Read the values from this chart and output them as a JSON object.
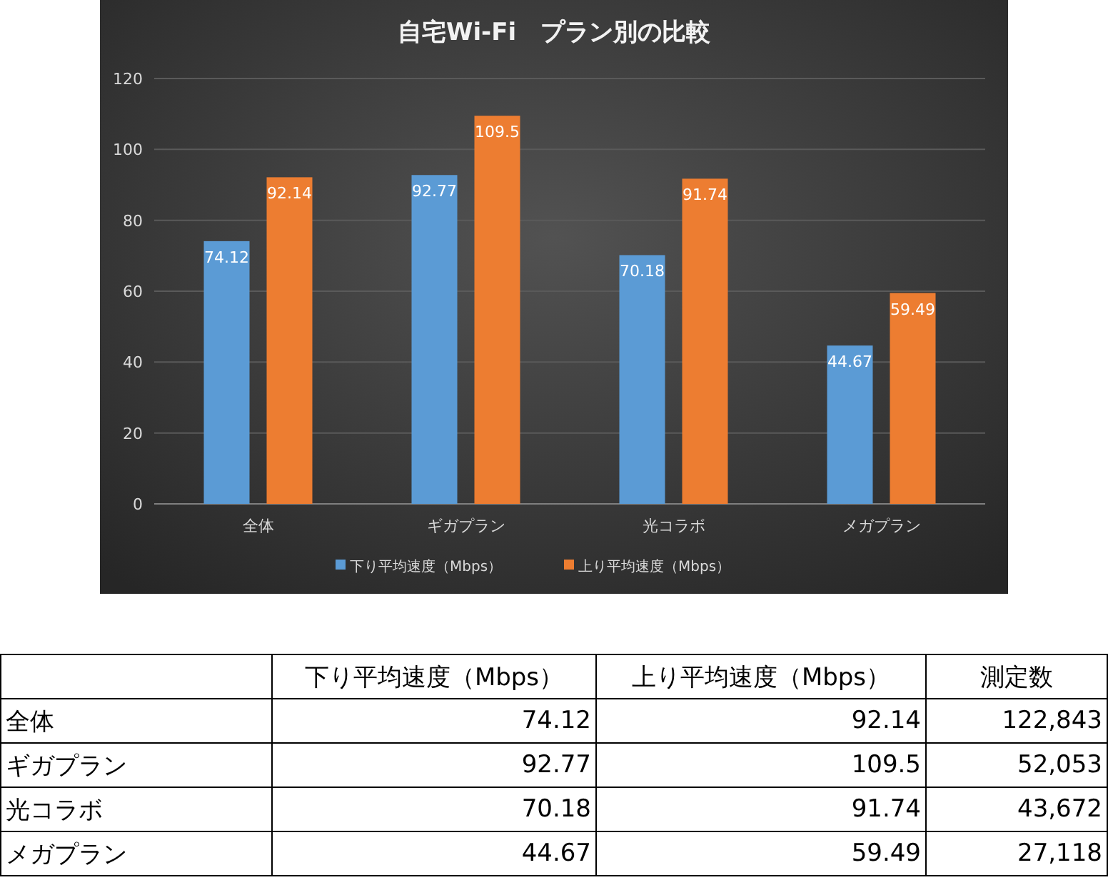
{
  "chart_data": [
    {
      "type": "bar",
      "title": "自宅Wi-Fi　プラン別の比較",
      "categories": [
        "全体",
        "ギガプラン",
        "光コラボ",
        "メガプラン"
      ],
      "series": [
        {
          "name": "下り平均速度（Mbps）",
          "color": "#5b9bd5",
          "values": [
            74.12,
            92.77,
            70.18,
            44.67
          ]
        },
        {
          "name": "上り平均速度（Mbps）",
          "color": "#ed7d31",
          "values": [
            92.14,
            109.5,
            91.74,
            59.49
          ]
        }
      ],
      "ylim": [
        0,
        120
      ],
      "yticks": [
        0,
        20,
        40,
        60,
        80,
        100,
        120
      ],
      "grid": "y",
      "legend": "bottom",
      "data_labels": true
    },
    {
      "type": "other",
      "categories": [
        "全体",
        "ギガプラン",
        "光コラボ",
        "メガプラン"
      ],
      "series": [
        {
          "name": "下り平均速度（Mbps）",
          "values": [
            74.12,
            92.77,
            70.18,
            44.67
          ]
        },
        {
          "name": "上り平均速度（Mbps）",
          "values": [
            92.14,
            109.5,
            91.74,
            59.49
          ]
        },
        {
          "name": "測定数",
          "values": [
            122843,
            52053,
            43672,
            27118
          ],
          "value_labels": [
            "122,843",
            "52,053",
            "43,672",
            "27,118"
          ]
        }
      ],
      "data_labels": true
    }
  ]
}
